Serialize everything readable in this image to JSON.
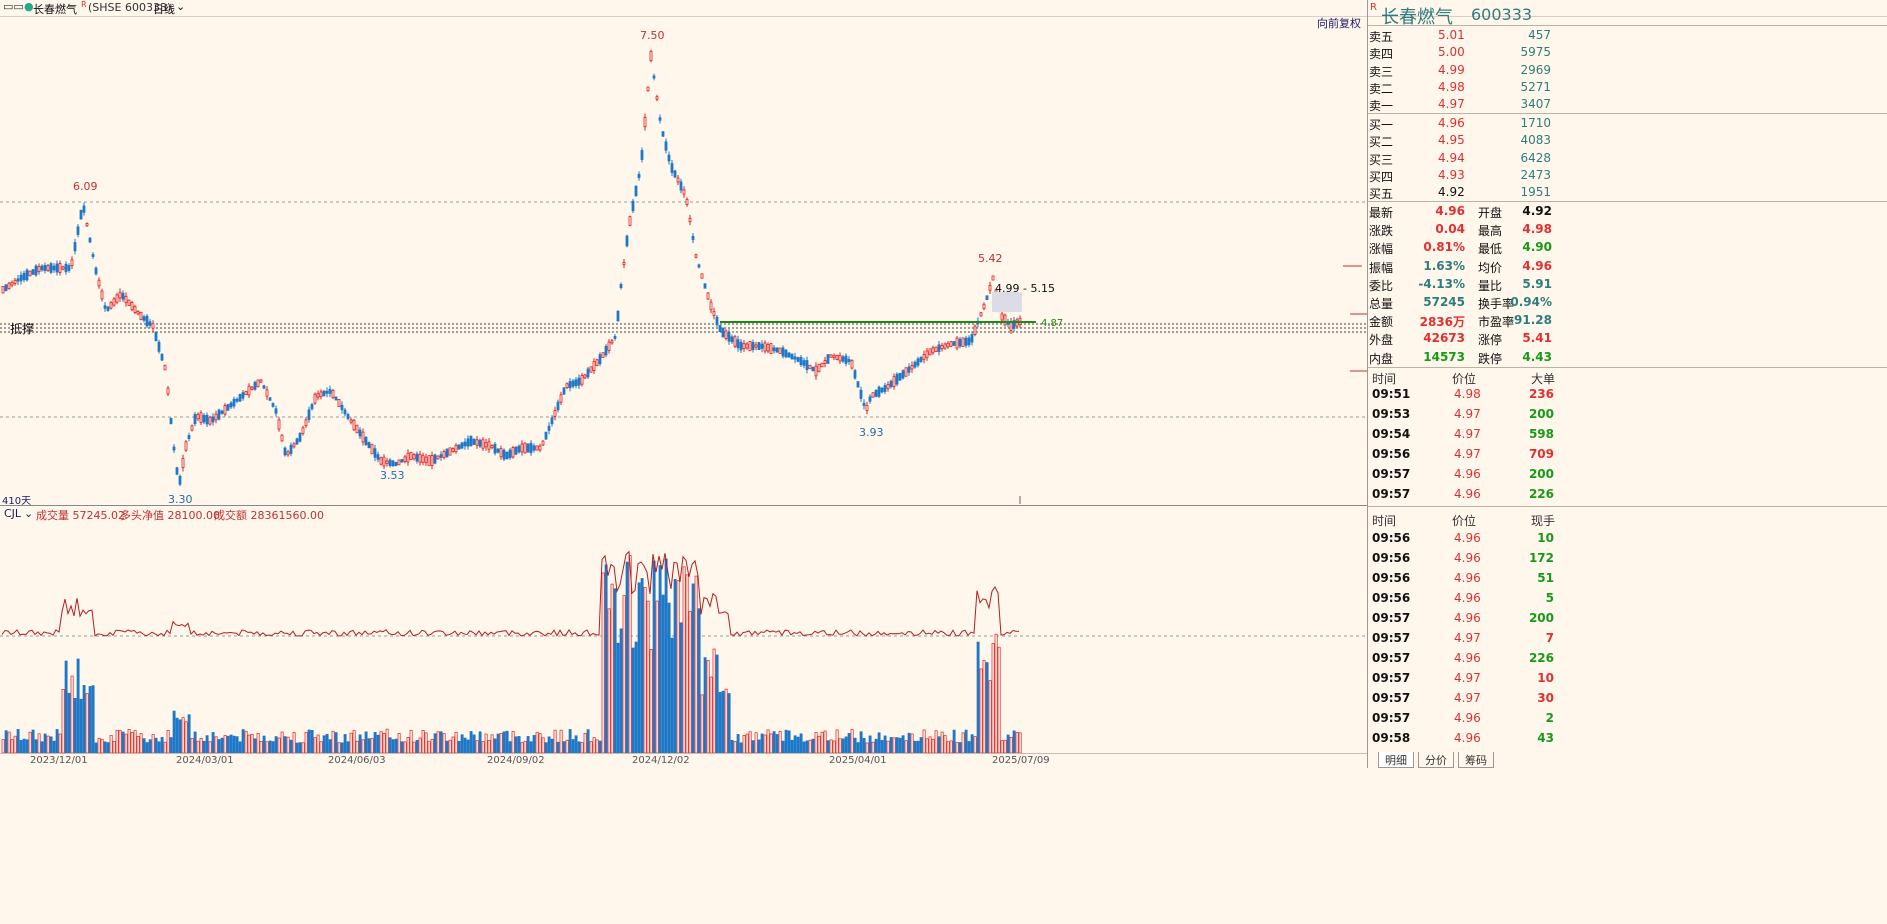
{
  "topbar": {
    "stock_name": "长春燃气",
    "code_label": "(SHSE 600333)",
    "period": "日线"
  },
  "main": {
    "reset_label": "向前复权",
    "days_label": "410天",
    "left_marker": "抵撑",
    "peaks": {
      "p609": "6.09",
      "p330": "3.30",
      "p353": "3.53",
      "p750": "7.50",
      "p393": "3.93",
      "p542": "5.42",
      "range_note": "4.99 - 5.15",
      "support": "4.87"
    }
  },
  "volume": {
    "indicator": "CJL",
    "vol_label": "成交量 57245.02",
    "net_label": "多头净值 28100.00",
    "amt_label": "成交额 28361560.00"
  },
  "dates": [
    "2023/12/01",
    "2024/03/01",
    "2024/06/03",
    "2024/09/02",
    "2024/12/02",
    "2025/04/01",
    "2025/07/09"
  ],
  "panel": {
    "title_name": "长春燃气",
    "title_code": "600333",
    "asks": [
      {
        "label": "卖五",
        "price": "5.01",
        "vol": "457"
      },
      {
        "label": "卖四",
        "price": "5.00",
        "vol": "5975"
      },
      {
        "label": "卖三",
        "price": "4.99",
        "vol": "2969"
      },
      {
        "label": "卖二",
        "price": "4.98",
        "vol": "5271"
      },
      {
        "label": "卖一",
        "price": "4.97",
        "vol": "3407"
      }
    ],
    "bids": [
      {
        "label": "买一",
        "price": "4.96",
        "vol": "1710"
      },
      {
        "label": "买二",
        "price": "4.95",
        "vol": "4083"
      },
      {
        "label": "买三",
        "price": "4.94",
        "vol": "6428"
      },
      {
        "label": "买四",
        "price": "4.93",
        "vol": "2473"
      },
      {
        "label": "买五",
        "price": "4.92",
        "vol": "1951"
      }
    ],
    "stats": [
      {
        "l1": "最新",
        "v1": "4.96",
        "c1": "red",
        "l2": "开盘",
        "v2": "4.92",
        "c2": "blk"
      },
      {
        "l1": "涨跌",
        "v1": "0.04",
        "c1": "red",
        "l2": "最高",
        "v2": "4.98",
        "c2": "red"
      },
      {
        "l1": "涨幅",
        "v1": "0.81%",
        "c1": "red",
        "l2": "最低",
        "v2": "4.90",
        "c2": "green"
      },
      {
        "l1": "振幅",
        "v1": "1.63%",
        "c1": "teal",
        "l2": "均价",
        "v2": "4.96",
        "c2": "red"
      },
      {
        "l1": "委比",
        "v1": "-4.13%",
        "c1": "teal",
        "l2": "量比",
        "v2": "5.91",
        "c2": "teal"
      },
      {
        "l1": "总量",
        "v1": "57245",
        "c1": "teal",
        "l2": "换手率",
        "v2": "0.94%",
        "c2": "teal"
      },
      {
        "l1": "金额",
        "v1": "2836万",
        "c1": "red",
        "l2": "市盈率",
        "v2": "-91.28",
        "c2": "teal"
      },
      {
        "l1": "外盘",
        "v1": "42673",
        "c1": "red",
        "l2": "涨停",
        "v2": "5.41",
        "c2": "red"
      },
      {
        "l1": "内盘",
        "v1": "14573",
        "c1": "green",
        "l2": "跌停",
        "v2": "4.43",
        "c2": "green"
      }
    ],
    "big_header": {
      "time": "时间",
      "price": "价位",
      "qty": "大单"
    },
    "big_orders": [
      {
        "time": "09:51",
        "price": "4.98",
        "qty": "236",
        "c": "red"
      },
      {
        "time": "09:53",
        "price": "4.97",
        "qty": "200",
        "c": "green"
      },
      {
        "time": "09:54",
        "price": "4.97",
        "qty": "598",
        "c": "green"
      },
      {
        "time": "09:56",
        "price": "4.97",
        "qty": "709",
        "c": "red"
      },
      {
        "time": "09:57",
        "price": "4.96",
        "qty": "200",
        "c": "green"
      },
      {
        "time": "09:57",
        "price": "4.96",
        "qty": "226",
        "c": "green"
      }
    ],
    "tick_header": {
      "time": "时间",
      "price": "价位",
      "qty": "现手"
    },
    "ticks": [
      {
        "time": "09:56",
        "price": "4.96",
        "qty": "10",
        "c": "green"
      },
      {
        "time": "09:56",
        "price": "4.96",
        "qty": "172",
        "c": "green"
      },
      {
        "time": "09:56",
        "price": "4.96",
        "qty": "51",
        "c": "green"
      },
      {
        "time": "09:56",
        "price": "4.96",
        "qty": "5",
        "c": "green"
      },
      {
        "time": "09:57",
        "price": "4.96",
        "qty": "200",
        "c": "green"
      },
      {
        "time": "09:57",
        "price": "4.97",
        "qty": "7",
        "c": "red"
      },
      {
        "time": "09:57",
        "price": "4.96",
        "qty": "226",
        "c": "green"
      },
      {
        "time": "09:57",
        "price": "4.97",
        "qty": "10",
        "c": "red"
      },
      {
        "time": "09:57",
        "price": "4.97",
        "qty": "30",
        "c": "red"
      },
      {
        "time": "09:57",
        "price": "4.96",
        "qty": "2",
        "c": "green"
      },
      {
        "time": "09:58",
        "price": "4.96",
        "qty": "43",
        "c": "green"
      }
    ],
    "tabs": [
      "明细",
      "分价",
      "筹码"
    ]
  }
}
